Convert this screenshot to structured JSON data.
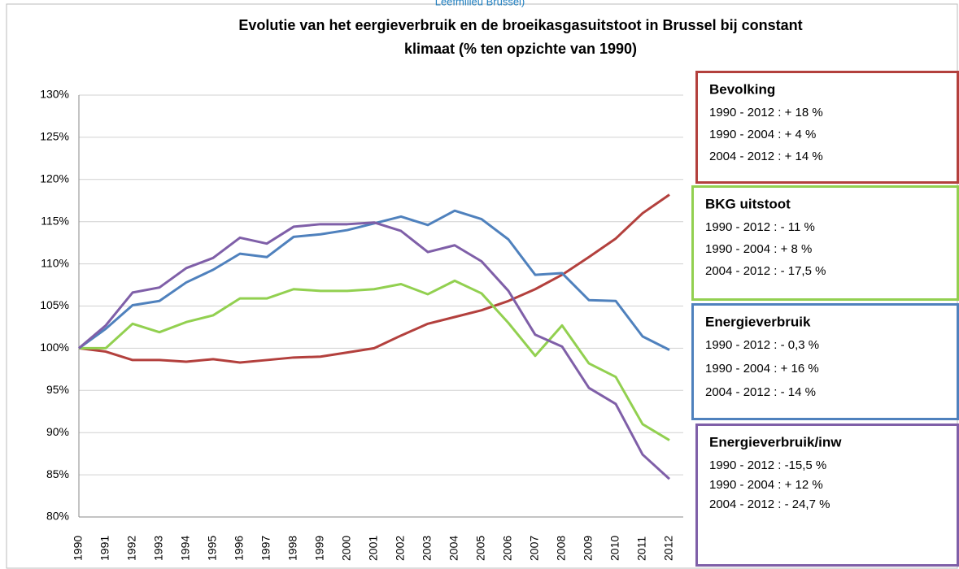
{
  "chart_data": {
    "type": "line",
    "source": "Leefmilieu Brussel)",
    "title": [
      "Evolutie van het eergieverbruik en de broeikasgasuitstoot in Brussel bij constant",
      "klimaat (% ten opzichte van 1990)"
    ],
    "categories": [
      "1990",
      "1991",
      "1992",
      "1993",
      "1994",
      "1995",
      "1996",
      "1997",
      "1998",
      "1999",
      "2000",
      "2001",
      "2002",
      "2003",
      "2004",
      "2005",
      "2006",
      "2007",
      "2008",
      "2009",
      "2010",
      "2011",
      "2012"
    ],
    "ylim": [
      80,
      130
    ],
    "yticks": [
      {
        "value": 80,
        "label": "80%"
      },
      {
        "value": 85,
        "label": "85%"
      },
      {
        "value": 90,
        "label": "90%"
      },
      {
        "value": 95,
        "label": "95%"
      },
      {
        "value": 100,
        "label": "100%"
      },
      {
        "value": 105,
        "label": "105%"
      },
      {
        "value": 110,
        "label": "110%"
      },
      {
        "value": 115,
        "label": "115%"
      },
      {
        "value": 120,
        "label": "120%"
      },
      {
        "value": 125,
        "label": "125%"
      },
      {
        "value": 130,
        "label": "130%"
      }
    ],
    "grid": true,
    "series": [
      {
        "name": "Bevolking",
        "color": "#b3403d",
        "notes": [
          "1990 - 2012 : + 18 %",
          "1990 - 2004 : + 4 %",
          "2004 - 2012 :  + 14 %"
        ],
        "values": [
          100,
          99.6,
          98.6,
          98.6,
          98.4,
          98.7,
          98.3,
          98.6,
          98.9,
          99.0,
          99.5,
          100.0,
          101.5,
          102.9,
          103.7,
          104.5,
          105.6,
          107.0,
          108.7,
          110.8,
          113.0,
          116.0,
          118.2
        ]
      },
      {
        "name": "BKG uitstoot",
        "color": "#92d050",
        "notes": [
          "1990 - 2012 : - 11 %",
          "1990 - 2004 : + 8 %",
          "2004 - 2012 :  - 17,5 %"
        ],
        "values": [
          100,
          100.0,
          102.9,
          101.9,
          103.1,
          103.9,
          105.9,
          105.9,
          107.0,
          106.8,
          106.8,
          107.0,
          107.6,
          106.4,
          108.0,
          106.5,
          103.0,
          99.1,
          102.7,
          98.2,
          96.6,
          91.0,
          89.1
        ]
      },
      {
        "name": "Energieverbruik",
        "color": "#4f81bd",
        "notes": [
          "1990 - 2012 : - 0,3 %",
          "1990 - 2004 : + 16 %",
          "2004 - 2012 :  - 14 %"
        ],
        "values": [
          100,
          102.3,
          105.1,
          105.6,
          107.8,
          109.3,
          111.2,
          110.8,
          113.2,
          113.5,
          114.0,
          114.8,
          115.6,
          114.6,
          116.3,
          115.3,
          112.9,
          108.7,
          108.9,
          105.7,
          105.6,
          101.4,
          99.8
        ]
      },
      {
        "name": "Energieverbruik/inw",
        "color": "#7f5fa8",
        "notes": [
          "1990 - 2012 : -15,5 %",
          "1990 - 2004 : + 12 %",
          "2004 - 2012 :  - 24,7 %"
        ],
        "values": [
          100,
          102.7,
          106.6,
          107.2,
          109.5,
          110.7,
          113.1,
          112.4,
          114.4,
          114.7,
          114.7,
          114.9,
          113.9,
          111.4,
          112.2,
          110.3,
          106.8,
          101.6,
          100.2,
          95.3,
          93.4,
          87.4,
          84.5
        ]
      }
    ]
  }
}
